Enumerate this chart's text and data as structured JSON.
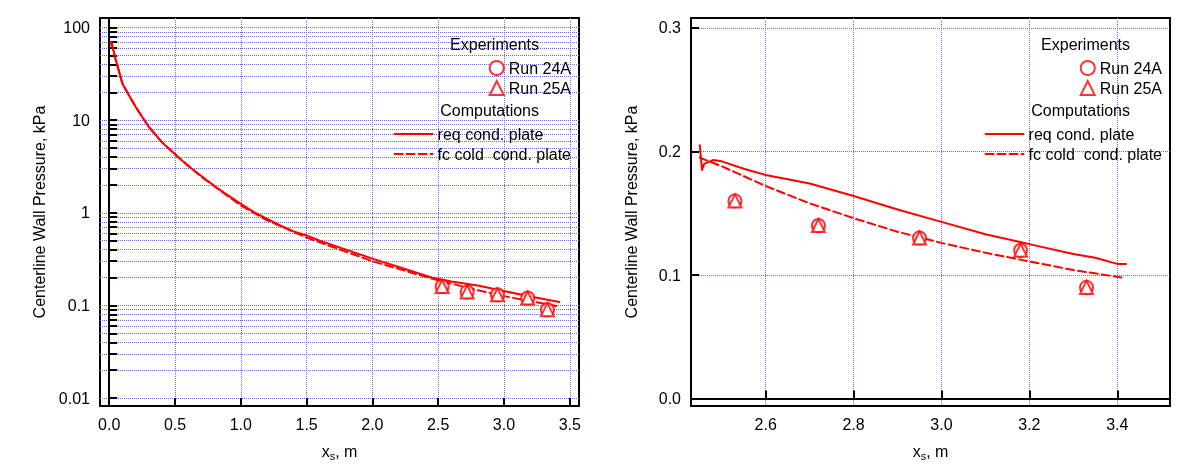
{
  "chart_data": [
    {
      "type": "line",
      "xlabel": "x$_{s}$, m",
      "ylabel": "Centerline Wall Pressure, kPa",
      "log": "y",
      "grid": true,
      "legend": "top right",
      "annotations": [
        "Experiments",
        "Computations"
      ],
      "xlim": [
        -0.07,
        3.57
      ],
      "ylim": [
        0.0082,
        127
      ],
      "xticks": [
        {
          "value": 0,
          "label": "0.0"
        },
        {
          "value": 0.5,
          "label": "0.5"
        },
        {
          "value": 1,
          "label": "1.0"
        },
        {
          "value": 1.5,
          "label": "1.5"
        },
        {
          "value": 2,
          "label": "2.0"
        },
        {
          "value": 2.5,
          "label": "2.5"
        },
        {
          "value": 3,
          "label": "3.0"
        },
        {
          "value": 3.5,
          "label": "3.5"
        }
      ],
      "yticks": [
        0.01,
        {
          "value": 0.02,
          "label": null
        },
        {
          "value": 0.03,
          "label": null
        },
        {
          "value": 0.04,
          "label": null
        },
        {
          "value": 0.05,
          "label": null
        },
        {
          "value": 0.06,
          "label": null
        },
        {
          "value": 0.07,
          "label": null
        },
        {
          "value": 0.08,
          "label": null
        },
        {
          "value": 0.09,
          "label": null
        },
        0.1,
        {
          "value": 0.2,
          "label": null
        },
        {
          "value": 0.3,
          "label": null
        },
        {
          "value": 0.4,
          "label": null
        },
        {
          "value": 0.5,
          "label": null
        },
        {
          "value": 0.6,
          "label": null
        },
        {
          "value": 0.7,
          "label": null
        },
        {
          "value": 0.8,
          "label": null
        },
        {
          "value": 0.9,
          "label": null
        },
        1,
        {
          "value": 2,
          "label": null
        },
        {
          "value": 3,
          "label": null
        },
        {
          "value": 4,
          "label": null
        },
        {
          "value": 5,
          "label": null
        },
        {
          "value": 6,
          "label": null
        },
        {
          "value": 7,
          "label": null
        },
        {
          "value": 8,
          "label": null
        },
        {
          "value": 9,
          "label": null
        },
        10,
        {
          "value": 20,
          "label": null
        },
        {
          "value": 30,
          "label": null
        },
        {
          "value": 40,
          "label": null
        },
        {
          "value": 50,
          "label": null
        },
        {
          "value": 60,
          "label": null
        },
        {
          "value": 70,
          "label": null
        },
        {
          "value": 80,
          "label": null
        },
        {
          "value": 90,
          "label": null
        },
        100
      ],
      "series": [
        {
          "name": "Run 24A",
          "type": "scatter",
          "marker": "circle",
          "color": "#ff0000",
          "x": [
            2.53,
            2.72,
            2.95,
            3.18,
            3.33
          ],
          "values": [
            0.16,
            0.14,
            0.13,
            0.12,
            0.09
          ]
        },
        {
          "name": "Run 25A",
          "type": "scatter",
          "marker": "triangle",
          "color": "#ff0000",
          "x": [
            2.53,
            2.72,
            2.95,
            3.18,
            3.33
          ],
          "values": [
            0.16,
            0.14,
            0.13,
            0.12,
            0.09
          ]
        },
        {
          "name": "req cond. plate",
          "marker": "none",
          "line_style": "solid",
          "color": "#ff0000",
          "x": [
            0.01,
            0.02,
            0.05,
            0.1,
            0.12,
            0.2,
            0.3,
            0.4,
            0.5,
            0.6,
            0.7,
            0.8,
            0.9,
            1.0,
            1.1,
            1.2,
            1.3,
            1.4,
            1.5,
            1.6,
            1.8,
            2.0,
            2.2,
            2.45,
            2.6,
            2.8,
            3.0,
            3.2,
            3.42
          ],
          "values": [
            70,
            68,
            45,
            25,
            22,
            14,
            8.5,
            5.8,
            4.3,
            3.2,
            2.5,
            1.95,
            1.55,
            1.25,
            1.02,
            0.86,
            0.73,
            0.63,
            0.57,
            0.5,
            0.4,
            0.32,
            0.26,
            0.2,
            0.181,
            0.164,
            0.143,
            0.125,
            0.109
          ]
        },
        {
          "name": "fc cold  cond. plate",
          "marker": "none",
          "line_style": "dashed",
          "color": "#ff0000",
          "x": [
            0.01,
            0.1,
            0.2,
            0.3,
            0.4,
            0.5,
            0.7,
            1.0,
            1.2,
            1.5,
            1.8,
            2.0,
            2.45,
            2.6,
            2.8,
            3.0,
            3.2,
            3.41
          ],
          "values": [
            70,
            25,
            14,
            8.5,
            5.8,
            4.3,
            2.45,
            1.2,
            0.83,
            0.54,
            0.38,
            0.3,
            0.195,
            0.172,
            0.146,
            0.126,
            0.111,
            0.098
          ]
        }
      ]
    },
    {
      "type": "line",
      "xlabel": "x$_{s}$, m",
      "ylabel": "Centerline Wall Pressure, kPa",
      "grid": true,
      "legend": "top right",
      "annotations": [
        "Experiments",
        "Computations"
      ],
      "xlim": [
        2.43,
        3.52
      ],
      "ylim": [
        -0.006,
        0.308
      ],
      "xticks": [
        2.6,
        2.8,
        {
          "value": 3,
          "label": "3.0"
        },
        3.2,
        3.4
      ],
      "yticks": [
        {
          "value": 0,
          "label": "0.0"
        },
        0.1,
        0.2,
        0.3
      ],
      "series": [
        {
          "name": "Run 24A",
          "type": "scatter",
          "marker": "circle",
          "color": "#ff0000",
          "x": [
            2.53,
            2.72,
            2.95,
            3.18,
            3.33
          ],
          "values": [
            0.16,
            0.14,
            0.13,
            0.12,
            0.09
          ]
        },
        {
          "name": "Run 25A",
          "type": "scatter",
          "marker": "triangle",
          "color": "#ff0000",
          "x": [
            2.53,
            2.72,
            2.95,
            3.18,
            3.33
          ],
          "values": [
            0.16,
            0.14,
            0.13,
            0.12,
            0.09
          ]
        },
        {
          "name": "req cond. plate",
          "marker": "none",
          "line_style": "solid",
          "color": "#ff0000",
          "x": [
            2.45,
            2.455,
            2.46,
            2.48,
            2.5,
            2.55,
            2.6,
            2.7,
            2.8,
            2.9,
            3.0,
            3.1,
            3.2,
            3.3,
            3.35,
            3.4,
            3.42
          ],
          "values": [
            0.205,
            0.185,
            0.19,
            0.193,
            0.192,
            0.186,
            0.181,
            0.174,
            0.164,
            0.153,
            0.143,
            0.133,
            0.125,
            0.117,
            0.114,
            0.109,
            0.109
          ]
        },
        {
          "name": "fc cold  cond. plate",
          "marker": "none",
          "line_style": "dashed",
          "color": "#ff0000",
          "x": [
            2.45,
            2.5,
            2.6,
            2.7,
            2.8,
            2.9,
            3.0,
            3.1,
            3.2,
            3.3,
            3.41
          ],
          "values": [
            0.195,
            0.188,
            0.172,
            0.158,
            0.146,
            0.135,
            0.126,
            0.118,
            0.111,
            0.104,
            0.098
          ]
        }
      ]
    }
  ]
}
